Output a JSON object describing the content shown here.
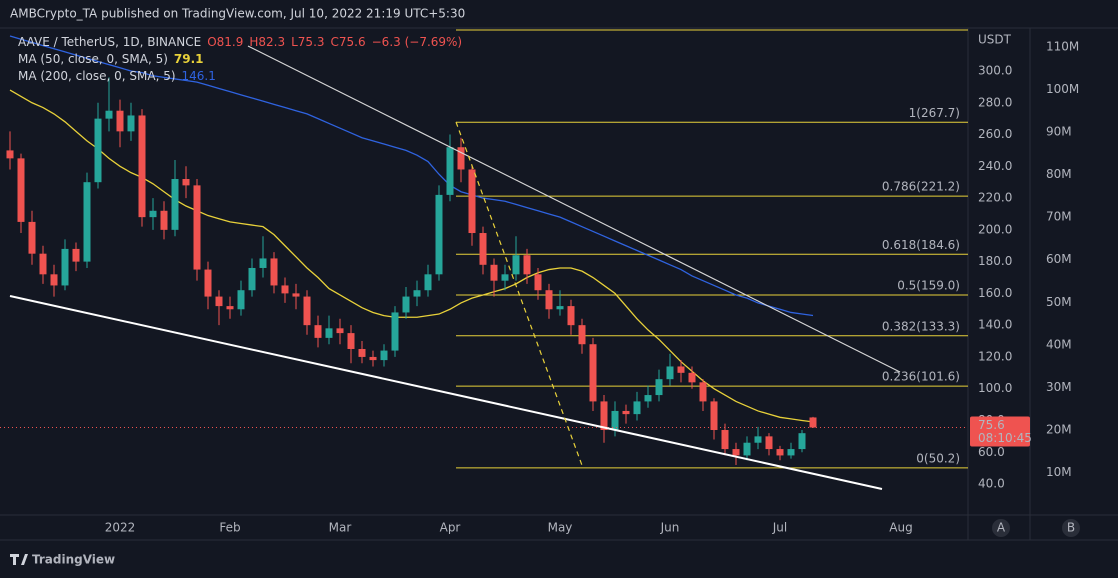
{
  "header": {
    "title": "AMBCrypto_TA published on TradingView.com, Jul 10, 2022 21:19 UTC+5:30",
    "symbol": "AAVE / TetherUS, 1D, BINANCE",
    "ohlc": [
      "O81.9",
      "H82.3",
      "L75.3",
      "C75.6",
      "−6.3 (−7.69%)"
    ]
  },
  "chart_data": {
    "type": "candlestick",
    "categories": [
      null,
      null,
      null,
      null,
      null,
      null,
      null,
      null,
      null,
      null,
      "2022",
      null,
      null,
      null,
      null,
      null,
      null,
      null,
      null,
      null,
      "Feb",
      null,
      null,
      null,
      null,
      null,
      null,
      null,
      null,
      null,
      "Mar",
      null,
      null,
      null,
      null,
      null,
      null,
      null,
      null,
      null,
      "Apr",
      null,
      null,
      null,
      null,
      null,
      null,
      null,
      null,
      null,
      "May",
      null,
      null,
      null,
      null,
      null,
      null,
      null,
      null,
      null,
      "Jun",
      null,
      null,
      null,
      null,
      null,
      null,
      null,
      null,
      null,
      "Jul",
      null,
      null,
      null,
      null,
      null,
      null,
      null,
      null,
      null,
      null,
      "Aug",
      null,
      null,
      null,
      null,
      null,
      null
    ],
    "open": [
      250,
      245,
      205,
      185,
      172,
      165,
      188,
      180,
      230,
      270,
      275,
      262,
      272,
      208,
      212,
      200,
      232,
      228,
      175,
      158,
      152,
      150,
      162,
      176,
      182,
      165,
      160,
      158,
      140,
      132,
      138,
      135,
      125,
      120,
      118,
      124,
      148,
      158,
      162,
      172,
      222,
      252,
      238,
      198,
      178,
      168,
      172,
      184,
      172,
      162,
      150,
      152,
      140,
      128,
      92,
      74,
      86,
      84,
      92,
      96,
      106,
      114,
      110,
      104,
      92,
      74,
      62,
      58,
      66,
      70,
      62,
      58,
      62,
      81.9,
      null,
      null,
      null,
      null,
      null,
      null,
      null,
      null,
      null,
      null,
      null,
      null,
      null,
      null
    ],
    "high": [
      262,
      248,
      212,
      190,
      178,
      194,
      192,
      236,
      280,
      296,
      282,
      280,
      276,
      220,
      218,
      244,
      240,
      232,
      180,
      162,
      158,
      168,
      182,
      196,
      186,
      170,
      166,
      162,
      146,
      146,
      144,
      140,
      130,
      124,
      128,
      152,
      164,
      168,
      178,
      228,
      260,
      258,
      240,
      202,
      182,
      178,
      196,
      188,
      176,
      166,
      162,
      156,
      144,
      132,
      96,
      92,
      90,
      98,
      102,
      112,
      122,
      118,
      114,
      106,
      94,
      78,
      66,
      70,
      76,
      72,
      64,
      66,
      74,
      82.3,
      null,
      null,
      null,
      null,
      null,
      null,
      null,
      null,
      null,
      null,
      null,
      null,
      null,
      null
    ],
    "low": [
      238,
      198,
      178,
      166,
      158,
      162,
      174,
      176,
      226,
      262,
      252,
      256,
      202,
      200,
      194,
      196,
      220,
      168,
      150,
      140,
      144,
      146,
      158,
      170,
      160,
      154,
      150,
      134,
      126,
      128,
      128,
      116,
      116,
      114,
      114,
      120,
      144,
      152,
      158,
      168,
      218,
      230,
      190,
      172,
      158,
      162,
      168,
      166,
      156,
      144,
      146,
      134,
      122,
      86,
      66,
      70,
      78,
      80,
      88,
      92,
      102,
      104,
      100,
      86,
      68,
      58,
      52,
      55,
      62,
      58,
      55,
      56,
      60,
      75.3,
      null,
      null,
      null,
      null,
      null,
      null,
      null,
      null,
      null,
      null,
      null,
      null,
      null,
      null
    ],
    "close": [
      245,
      205,
      185,
      172,
      165,
      188,
      180,
      230,
      270,
      275,
      262,
      272,
      208,
      212,
      200,
      232,
      228,
      175,
      158,
      152,
      150,
      162,
      176,
      182,
      165,
      160,
      158,
      140,
      132,
      138,
      135,
      125,
      120,
      118,
      124,
      148,
      158,
      162,
      172,
      222,
      252,
      238,
      198,
      178,
      168,
      172,
      184,
      172,
      162,
      150,
      152,
      140,
      128,
      92,
      74,
      86,
      84,
      92,
      96,
      106,
      114,
      110,
      104,
      92,
      74,
      62,
      58,
      66,
      70,
      62,
      58,
      62,
      72,
      75.6,
      null,
      null,
      null,
      null,
      null,
      null,
      null,
      null,
      null,
      null,
      null,
      null,
      null,
      null
    ],
    "up_color": "#26a69a",
    "down_color": "#ef5350",
    "series": [
      {
        "name": "MA (50, close, 0, SMA, 5)",
        "color": "#e8d13a",
        "values": [
          288,
          284,
          280,
          277,
          273,
          268,
          262,
          256,
          251,
          245,
          240,
          236,
          233,
          229,
          224,
          219,
          215,
          212,
          209,
          207,
          205,
          204,
          203,
          202,
          197,
          190,
          183,
          176,
          170,
          163,
          159,
          155,
          151,
          148,
          146,
          145,
          145,
          145,
          146,
          147,
          150,
          154,
          157,
          159,
          161,
          163,
          166,
          170,
          173,
          175,
          176,
          176,
          174,
          170,
          165,
          160,
          152,
          144,
          137,
          131,
          124,
          117,
          111,
          105,
          100,
          96,
          92,
          89,
          86,
          84,
          82,
          81,
          80,
          79.1,
          null,
          null,
          null,
          null,
          null,
          null,
          null,
          null,
          null,
          null,
          null,
          null,
          null,
          null
        ]
      },
      {
        "name": "MA (200, close, 0, SMA, 5)",
        "color": "#2f63e0",
        "values": [
          322,
          320,
          318,
          316,
          314,
          312,
          310,
          308,
          306,
          304,
          302,
          300,
          299,
          297,
          296,
          295,
          294,
          293,
          291,
          289,
          287,
          285,
          283,
          281,
          279,
          277,
          275,
          273,
          270,
          267,
          264,
          261,
          258,
          256,
          254,
          252,
          250,
          247,
          243,
          235,
          228,
          224,
          222,
          220,
          219,
          218,
          216,
          214,
          212,
          210,
          208,
          205,
          202,
          199,
          196,
          193,
          190,
          187,
          184,
          181,
          178,
          175,
          171,
          168,
          165,
          162,
          159,
          157,
          154,
          152,
          150,
          148,
          147,
          146.1,
          null,
          null,
          null,
          null,
          null,
          null,
          null,
          null,
          null,
          null,
          null,
          null,
          null,
          null
        ]
      }
    ],
    "y_unit": "USDT",
    "ylim": [
      20.5,
      325.8
    ],
    "yticks": [
      {
        "value": 40,
        "label": "40.0"
      },
      {
        "value": 60,
        "label": "60.0"
      },
      {
        "value": 80,
        "label": "80.0"
      },
      {
        "value": 100,
        "label": "100.0"
      },
      {
        "value": 120,
        "label": "120.0"
      },
      {
        "value": 140,
        "label": "140.0"
      },
      {
        "value": 160,
        "label": "160.0"
      },
      {
        "value": 180,
        "label": "180.0"
      },
      {
        "value": 200,
        "label": "200.0"
      },
      {
        "value": 220,
        "label": "220.0"
      },
      {
        "value": 240,
        "label": "240.0"
      },
      {
        "value": 260,
        "label": "260.0"
      },
      {
        "value": 280,
        "label": "280.0"
      },
      {
        "value": 300,
        "label": "300.0"
      }
    ],
    "y2lim": [
      0,
      114000000
    ],
    "y2ticks": [
      {
        "value": 10000000,
        "label": "10M"
      },
      {
        "value": 20000000,
        "label": "20M"
      },
      {
        "value": 30000000,
        "label": "30M"
      },
      {
        "value": 40000000,
        "label": "40M"
      },
      {
        "value": 50000000,
        "label": "50M"
      },
      {
        "value": 60000000,
        "label": "60M"
      },
      {
        "value": 70000000,
        "label": "70M"
      },
      {
        "value": 80000000,
        "label": "80M"
      },
      {
        "value": 90000000,
        "label": "90M"
      },
      {
        "value": 100000000,
        "label": "100M"
      },
      {
        "value": 110000000,
        "label": "110M"
      }
    ],
    "fib_color": "#e8d13a",
    "fib_levels": [
      {
        "value": 267.7,
        "label": "1(267.7)"
      },
      {
        "value": 221.2,
        "label": "0.786(221.2)"
      },
      {
        "value": 184.6,
        "label": "0.618(184.6)"
      },
      {
        "value": 159.0,
        "label": "0.5(159.0)"
      },
      {
        "value": 133.3,
        "label": "0.382(133.3)"
      },
      {
        "value": 101.6,
        "label": "0.236(101.6)"
      },
      {
        "value": 50.2,
        "label": "0(50.2)"
      }
    ],
    "countdown": "08:10:45",
    "grid": false
  },
  "footer": {
    "brand": "TradingView",
    "buttons": [
      "A",
      "B"
    ]
  }
}
